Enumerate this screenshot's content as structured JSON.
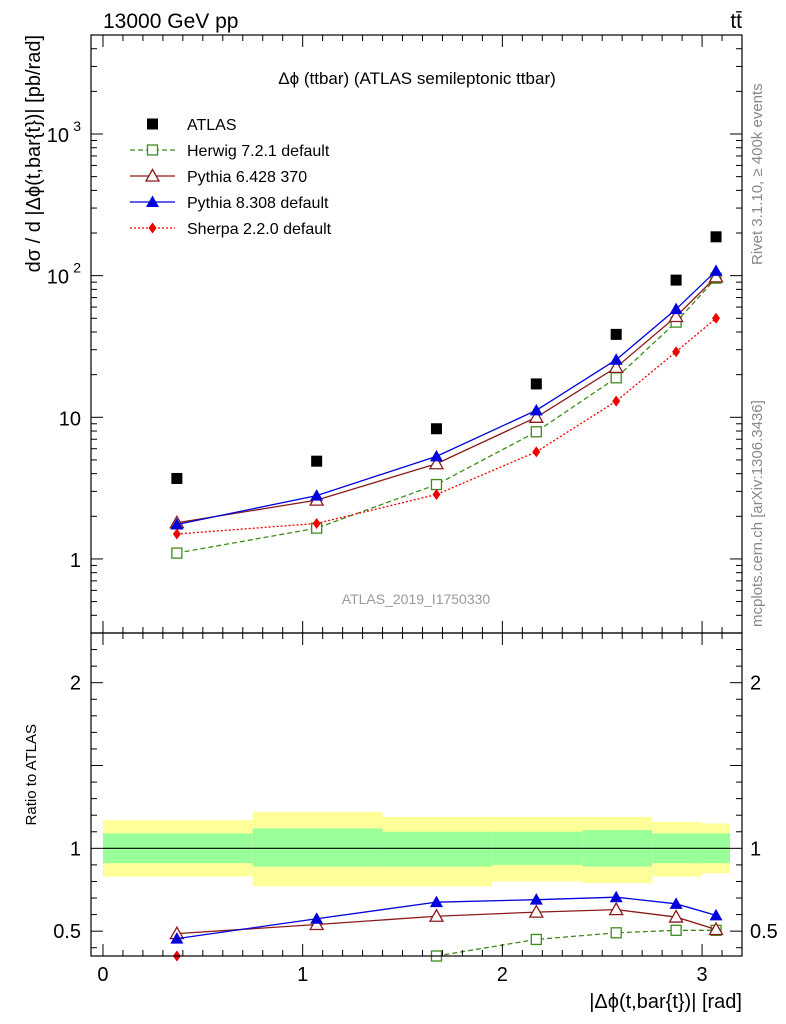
{
  "header": {
    "left": "13000 GeV pp",
    "right": "tt̄"
  },
  "side_labels": {
    "rivet": "Rivet 3.1.10, ≥ 400k events",
    "mcplots": "mcplots.cern.ch [arXiv:1306.3436]"
  },
  "chart_data": [
    {
      "type": "scatter",
      "title": "Δϕ (ttbar) (ATLAS semileptonic ttbar)",
      "watermark": "ATLAS_2019_I1750330",
      "ylabel": "dσ / d |Δϕ(t,bar{t})| [pb/rad]",
      "yscale": "log",
      "ylim": [
        0.3,
        5000
      ],
      "yticks": [
        {
          "value": 1,
          "label": "1"
        },
        {
          "value": 10,
          "label": "10"
        },
        {
          "value": 100,
          "label": "10",
          "sup": "2"
        },
        {
          "value": 1000,
          "label": "10",
          "sup": "3"
        }
      ],
      "xlim": [
        -0.06,
        3.2
      ],
      "x": [
        0.37,
        1.07,
        1.67,
        2.17,
        2.57,
        2.87,
        3.07
      ],
      "legend_position": "top-left",
      "series": [
        {
          "name": "ATLAS",
          "color": "#000000",
          "marker": "square-filled",
          "line": "none",
          "values": [
            3.7,
            4.9,
            8.3,
            17.2,
            38.5,
            93.0,
            188.0
          ]
        },
        {
          "name": "Herwig 7.2.1 default",
          "color": "#3d8c1a",
          "marker": "square-open",
          "line": "dashed",
          "values": [
            1.1,
            1.65,
            3.35,
            7.9,
            19.0,
            47.0,
            96.0
          ]
        },
        {
          "name": "Pythia 6.428 370",
          "color": "#8b1a1a",
          "marker": "triangle-open",
          "line": "solid",
          "values": [
            1.8,
            2.6,
            4.7,
            10.0,
            22.5,
            51.5,
            98.0
          ]
        },
        {
          "name": "Pythia 8.308 default",
          "color": "#0000dd",
          "marker": "triangle-filled",
          "line": "solid",
          "values": [
            1.75,
            2.8,
            5.3,
            11.2,
            25.5,
            58.0,
            108.0
          ]
        },
        {
          "name": "Sherpa 2.2.0 default",
          "color": "#ee0000",
          "marker": "diamond-filled",
          "line": "dotted",
          "values": [
            1.5,
            1.78,
            2.85,
            5.7,
            13.0,
            29.0,
            50.0
          ]
        }
      ]
    },
    {
      "type": "scatter",
      "ylabel": "Ratio to ATLAS",
      "xlabel": "|Δϕ(t,bar{t})| [rad]",
      "ylim": [
        0.35,
        2.3
      ],
      "xlim": [
        -0.06,
        3.2
      ],
      "yticks": [
        0.5,
        1,
        2
      ],
      "xticks": [
        0,
        1,
        2,
        3
      ],
      "x": [
        0.37,
        1.07,
        1.67,
        2.17,
        2.57,
        2.87,
        3.07
      ],
      "bands": {
        "edges": [
          0.0,
          0.75,
          1.4,
          1.95,
          2.4,
          2.75,
          3.0,
          3.14
        ],
        "inner": [
          [
            0.91,
            1.09
          ],
          [
            0.89,
            1.12
          ],
          [
            0.89,
            1.1
          ],
          [
            0.9,
            1.1
          ],
          [
            0.89,
            1.11
          ],
          [
            0.91,
            1.09
          ],
          [
            0.91,
            1.09
          ]
        ],
        "outer": [
          [
            0.83,
            1.17
          ],
          [
            0.77,
            1.22
          ],
          [
            0.77,
            1.19
          ],
          [
            0.8,
            1.19
          ],
          [
            0.79,
            1.19
          ],
          [
            0.83,
            1.16
          ],
          [
            0.85,
            1.15
          ]
        ],
        "inner_color": "#99ff99",
        "outer_color": "#ffff99"
      },
      "series": [
        {
          "name": "Herwig 7.2.1 default",
          "values": [
            null,
            null,
            0.35,
            0.45,
            0.49,
            0.505,
            0.505
          ]
        },
        {
          "name": "Pythia 6.428 370",
          "values": [
            0.485,
            0.54,
            0.59,
            0.615,
            0.63,
            0.585,
            0.51
          ]
        },
        {
          "name": "Pythia 8.308 default",
          "values": [
            0.455,
            0.575,
            0.675,
            0.69,
            0.705,
            0.665,
            0.595
          ]
        },
        {
          "name": "Sherpa 2.2.0 default",
          "values": [
            0.35,
            null,
            null,
            null,
            null,
            null,
            null
          ]
        }
      ]
    }
  ]
}
